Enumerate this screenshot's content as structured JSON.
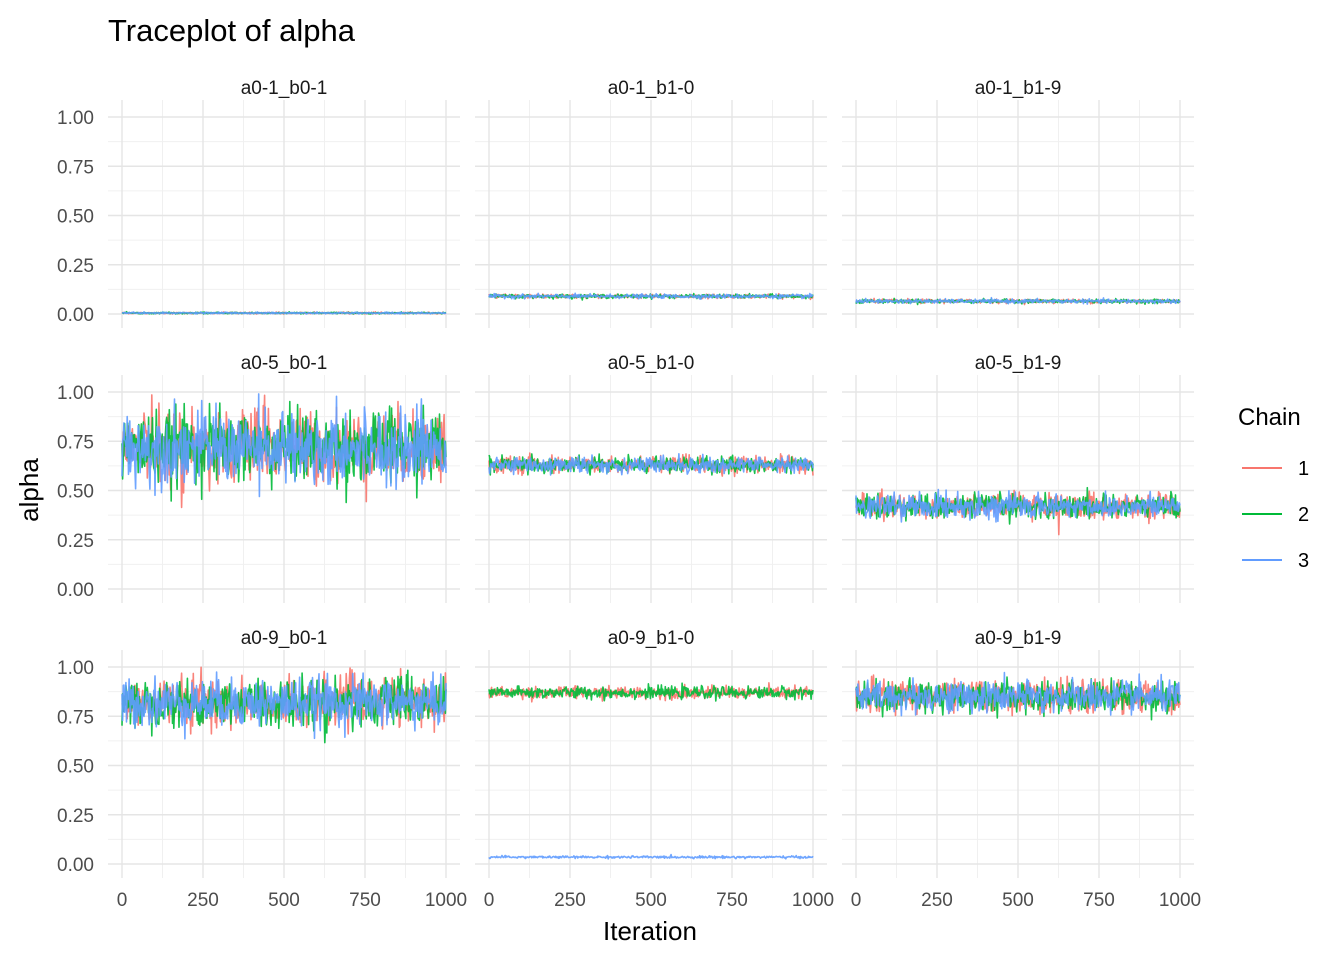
{
  "chart_data": {
    "type": "line",
    "title": "Traceplot of alpha",
    "xlabel": "Iteration",
    "ylabel": "alpha",
    "xlim": [
      0,
      1000
    ],
    "ylim": [
      0,
      1
    ],
    "x_ticks": [
      "0",
      "250",
      "500",
      "750",
      "1000"
    ],
    "y_ticks": [
      "0.00",
      "0.25",
      "0.50",
      "0.75",
      "1.00"
    ],
    "grid": true,
    "facet_layout": "3x3",
    "legend": {
      "title": "Chain",
      "position": "right",
      "entries": [
        {
          "label": "1",
          "color": "#F8766D"
        },
        {
          "label": "2",
          "color": "#00BA38"
        },
        {
          "label": "3",
          "color": "#619CFF"
        }
      ]
    },
    "panels": [
      {
        "label": "a0-1_b0-1",
        "series": [
          {
            "name": "1",
            "mean": 0.005,
            "spread": 0.002
          },
          {
            "name": "2",
            "mean": 0.005,
            "spread": 0.002
          },
          {
            "name": "3",
            "mean": 0.005,
            "spread": 0.002
          }
        ]
      },
      {
        "label": "a0-1_b1-0",
        "series": [
          {
            "name": "1",
            "mean": 0.09,
            "spread": 0.005
          },
          {
            "name": "2",
            "mean": 0.09,
            "spread": 0.005
          },
          {
            "name": "3",
            "mean": 0.09,
            "spread": 0.005
          }
        ]
      },
      {
        "label": "a0-1_b1-9",
        "series": [
          {
            "name": "1",
            "mean": 0.065,
            "spread": 0.005
          },
          {
            "name": "2",
            "mean": 0.065,
            "spread": 0.005
          },
          {
            "name": "3",
            "mean": 0.065,
            "spread": 0.005
          }
        ]
      },
      {
        "label": "a0-5_b0-1",
        "series": [
          {
            "name": "1",
            "mean": 0.72,
            "spread": 0.09
          },
          {
            "name": "2",
            "mean": 0.72,
            "spread": 0.09
          },
          {
            "name": "3",
            "mean": 0.72,
            "spread": 0.09
          }
        ]
      },
      {
        "label": "a0-5_b1-0",
        "series": [
          {
            "name": "1",
            "mean": 0.63,
            "spread": 0.02
          },
          {
            "name": "2",
            "mean": 0.63,
            "spread": 0.02
          },
          {
            "name": "3",
            "mean": 0.63,
            "spread": 0.02
          }
        ]
      },
      {
        "label": "a0-5_b1-9",
        "series": [
          {
            "name": "1",
            "mean": 0.42,
            "spread": 0.03
          },
          {
            "name": "2",
            "mean": 0.42,
            "spread": 0.03
          },
          {
            "name": "3",
            "mean": 0.42,
            "spread": 0.03
          }
        ]
      },
      {
        "label": "a0-9_b0-1",
        "series": [
          {
            "name": "1",
            "mean": 0.82,
            "spread": 0.06
          },
          {
            "name": "2",
            "mean": 0.82,
            "spread": 0.06
          },
          {
            "name": "3",
            "mean": 0.82,
            "spread": 0.06
          }
        ]
      },
      {
        "label": "a0-9_b1-0",
        "series": [
          {
            "name": "1",
            "mean": 0.87,
            "spread": 0.015
          },
          {
            "name": "2",
            "mean": 0.87,
            "spread": 0.015
          },
          {
            "name": "3",
            "mean": 0.035,
            "spread": 0.003
          }
        ]
      },
      {
        "label": "a0-9_b1-9",
        "series": [
          {
            "name": "1",
            "mean": 0.85,
            "spread": 0.04
          },
          {
            "name": "2",
            "mean": 0.85,
            "spread": 0.04
          },
          {
            "name": "3",
            "mean": 0.85,
            "spread": 0.04
          }
        ]
      }
    ]
  }
}
